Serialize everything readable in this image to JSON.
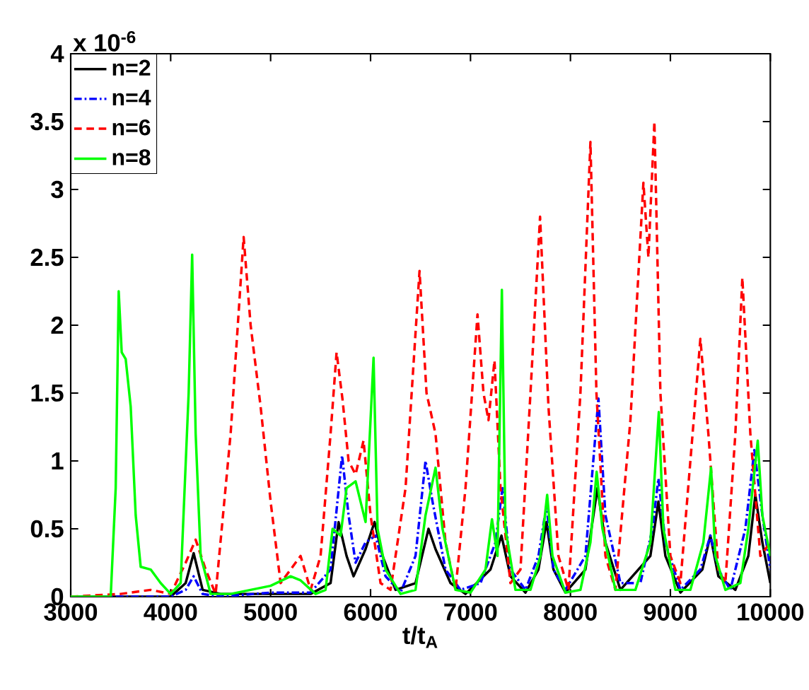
{
  "chart_data": {
    "type": "line",
    "xlabel": "t/t$_{A}$",
    "annotations": [
      "x 10$^{-6}$"
    ],
    "xlim": [
      3000,
      10000
    ],
    "xticks": [
      3000,
      4000,
      5000,
      6000,
      7000,
      8000,
      9000,
      10000
    ],
    "ylim": [
      0,
      4
    ],
    "yticks": [
      0,
      0.5,
      1,
      1.5,
      2,
      2.5,
      3,
      3.5,
      4
    ],
    "legend": "top left",
    "series": [
      {
        "name": "n=2",
        "color": "#000000",
        "line_style": "solid",
        "x": [
          3000,
          4000,
          4150,
          4230,
          4320,
          4500,
          5400,
          5600,
          5680,
          5760,
          5830,
          5950,
          6040,
          6120,
          6250,
          6450,
          6580,
          6650,
          6800,
          6950,
          7200,
          7310,
          7400,
          7550,
          7680,
          7760,
          7830,
          7950,
          8150,
          8270,
          8350,
          8500,
          8800,
          8880,
          8950,
          9100,
          9320,
          9400,
          9480,
          9650,
          9780,
          9850,
          9920,
          10000
        ],
        "values": [
          0,
          0,
          0.1,
          0.32,
          0.05,
          0.02,
          0.02,
          0.1,
          0.55,
          0.3,
          0.15,
          0.35,
          0.55,
          0.3,
          0.05,
          0.1,
          0.5,
          0.35,
          0.1,
          0.02,
          0.2,
          0.45,
          0.15,
          0.03,
          0.2,
          0.55,
          0.2,
          0.03,
          0.2,
          0.8,
          0.4,
          0.05,
          0.3,
          0.7,
          0.3,
          0.03,
          0.2,
          0.45,
          0.15,
          0.05,
          0.3,
          0.75,
          0.4,
          0.1
        ]
      },
      {
        "name": "n=4",
        "color": "#0000ff",
        "line_style": "dashdot",
        "x": [
          3000,
          4000,
          4150,
          4230,
          4320,
          4500,
          5000,
          5400,
          5600,
          5715,
          5780,
          5850,
          5950,
          6050,
          6150,
          6300,
          6450,
          6550,
          6620,
          6750,
          6900,
          7100,
          7250,
          7320,
          7400,
          7550,
          7680,
          7760,
          7830,
          7950,
          8150,
          8280,
          8350,
          8500,
          8700,
          8820,
          8880,
          8950,
          9100,
          9300,
          9400,
          9480,
          9600,
          9750,
          9840,
          9920,
          10000
        ],
        "values": [
          0,
          0,
          0.05,
          0.15,
          0.02,
          0,
          0.03,
          0.03,
          0.2,
          1.04,
          0.6,
          0.25,
          0.4,
          0.45,
          0.15,
          0.03,
          0.3,
          1.0,
          0.7,
          0.2,
          0.05,
          0.1,
          0.4,
          0.8,
          0.2,
          0.05,
          0.3,
          0.67,
          0.2,
          0.05,
          0.3,
          1.46,
          0.6,
          0.1,
          0.1,
          0.5,
          0.87,
          0.4,
          0.05,
          0.2,
          0.45,
          0.2,
          0.05,
          0.5,
          1.08,
          0.6,
          0.2
        ]
      },
      {
        "name": "n=6",
        "color": "#ff0000",
        "line_style": "dashed",
        "x": [
          3000,
          3500,
          3800,
          4000,
          4150,
          4250,
          4350,
          4450,
          4600,
          4730,
          4800,
          4900,
          5000,
          5100,
          5200,
          5300,
          5400,
          5500,
          5600,
          5660,
          5720,
          5780,
          5850,
          5930,
          6000,
          6100,
          6200,
          6350,
          6490,
          6560,
          6650,
          6750,
          6850,
          6950,
          7070,
          7130,
          7180,
          7240,
          7300,
          7400,
          7500,
          7600,
          7696,
          7780,
          7880,
          7980,
          8100,
          8200,
          8260,
          8350,
          8450,
          8600,
          8730,
          8780,
          8840,
          8900,
          9000,
          9100,
          9200,
          9300,
          9380,
          9480,
          9550,
          9650,
          9720,
          9800,
          9900,
          10000
        ],
        "values": [
          0,
          0.02,
          0.05,
          0.02,
          0.25,
          0.42,
          0.2,
          0.02,
          1.2,
          2.65,
          2.0,
          1.4,
          0.7,
          0.1,
          0.2,
          0.3,
          0.05,
          0.3,
          1.2,
          1.8,
          1.45,
          1.0,
          0.9,
          1.15,
          0.6,
          0.1,
          0.05,
          0.8,
          2.4,
          1.5,
          1.2,
          0.4,
          0.05,
          0.8,
          2.08,
          1.5,
          1.3,
          1.74,
          0.8,
          0.1,
          0.2,
          1.5,
          2.8,
          1.4,
          0.3,
          0.05,
          1.5,
          3.35,
          1.5,
          0.3,
          0.05,
          1.3,
          3.05,
          2.5,
          3.5,
          1.5,
          0.3,
          0.1,
          1.0,
          1.9,
          1.2,
          0.2,
          0.1,
          1.2,
          2.35,
          1.2,
          0.3,
          0.4
        ]
      },
      {
        "name": "n=8",
        "color": "#00ff00",
        "line_style": "solid",
        "x": [
          3000,
          3400,
          3450,
          3480,
          3510,
          3550,
          3600,
          3650,
          3700,
          3800,
          3900,
          4000,
          4100,
          4180,
          4215,
          4250,
          4300,
          4400,
          4600,
          4800,
          5000,
          5200,
          5300,
          5450,
          5550,
          5620,
          5700,
          5760,
          5850,
          5950,
          6030,
          6070,
          6150,
          6300,
          6450,
          6550,
          6650,
          6720,
          6850,
          7000,
          7150,
          7215,
          7270,
          7314,
          7350,
          7450,
          7600,
          7700,
          7767,
          7820,
          7950,
          8100,
          8200,
          8262,
          8320,
          8450,
          8650,
          8800,
          8884,
          8930,
          9050,
          9200,
          9330,
          9407,
          9450,
          9550,
          9700,
          9780,
          9874,
          9920,
          10000
        ],
        "values": [
          0,
          0,
          0.8,
          2.25,
          1.8,
          1.75,
          1.4,
          0.6,
          0.22,
          0.2,
          0.1,
          0.02,
          0.1,
          1.5,
          2.52,
          1.2,
          0.3,
          0.02,
          0.02,
          0.05,
          0.08,
          0.15,
          0.12,
          0.02,
          0.05,
          0.5,
          0.45,
          0.8,
          0.85,
          0.55,
          1.76,
          0.5,
          0.2,
          0.02,
          0.05,
          0.6,
          0.95,
          0.5,
          0.05,
          0.03,
          0.2,
          0.57,
          0.3,
          2.26,
          0.5,
          0.05,
          0.05,
          0.3,
          0.75,
          0.3,
          0.03,
          0.05,
          0.4,
          0.92,
          0.5,
          0.05,
          0.05,
          0.4,
          1.36,
          0.5,
          0.05,
          0.05,
          0.4,
          0.95,
          0.3,
          0.05,
          0.1,
          0.5,
          1.15,
          0.6,
          0.3
        ]
      }
    ]
  }
}
